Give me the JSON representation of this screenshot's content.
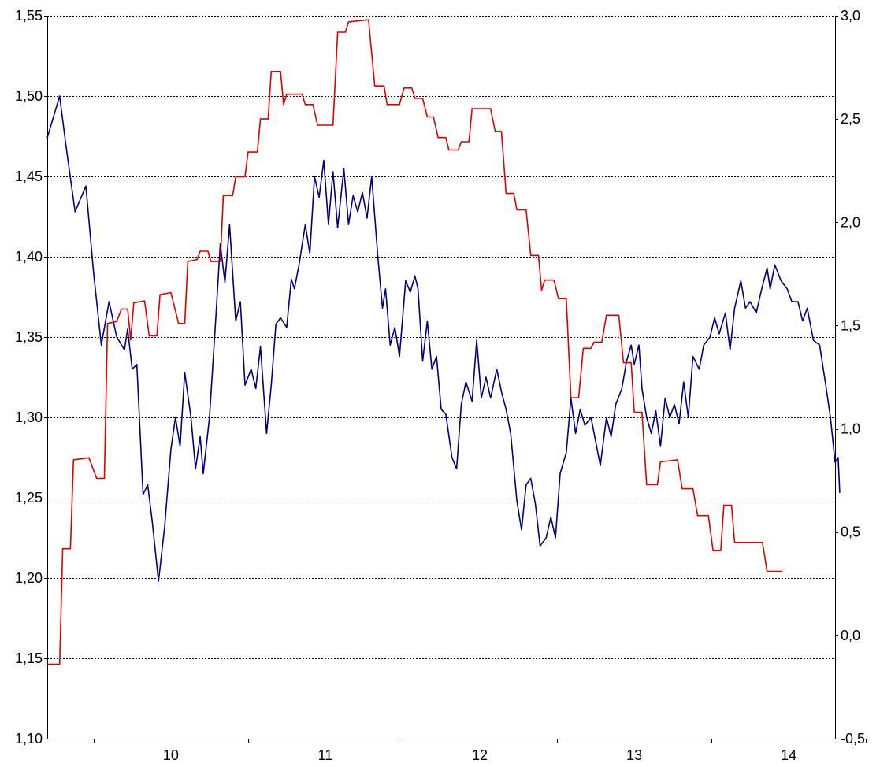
{
  "chart_data": {
    "type": "line",
    "title": "",
    "xlabel": "",
    "ylabel": "",
    "y2label": "",
    "grid": true,
    "legend": "none",
    "x_range": [
      9.2,
      14.3
    ],
    "x_ticks": [
      9.5,
      10.5,
      11.5,
      12.5,
      13.5,
      14.5
    ],
    "x_labels": [
      {
        "x": 10.0,
        "label": "10"
      },
      {
        "x": 11.0,
        "label": "11"
      },
      {
        "x": 12.0,
        "label": "12"
      },
      {
        "x": 13.0,
        "label": "13"
      },
      {
        "x": 14.0,
        "label": "14"
      }
    ],
    "y_left": {
      "range": [
        1.1,
        1.55
      ],
      "ticks": [
        1.1,
        1.15,
        1.2,
        1.25,
        1.3,
        1.35,
        1.4,
        1.45,
        1.5,
        1.55
      ],
      "tick_labels": [
        "1,10",
        "1,15",
        "1,20",
        "1,25",
        "1,30",
        "1,35",
        "1,40",
        "1,45",
        "1,50",
        "1,55"
      ]
    },
    "y_right": {
      "range": [
        -0.5,
        3.0
      ],
      "ticks": [
        -0.5,
        0.0,
        0.5,
        1.0,
        1.5,
        2.0,
        2.5,
        3.0
      ],
      "tick_labels": [
        "-0,5",
        "0,0",
        "0,5",
        "1,0",
        "1,5",
        "2,0",
        "2,5",
        "3,0"
      ]
    },
    "series": [
      {
        "axis": "left",
        "color": "#000080",
        "points": [
          [
            9.2,
            1.474
          ],
          [
            9.28,
            1.5
          ],
          [
            9.32,
            1.47
          ],
          [
            9.38,
            1.428
          ],
          [
            9.45,
            1.444
          ],
          [
            9.5,
            1.39
          ],
          [
            9.55,
            1.345
          ],
          [
            9.6,
            1.372
          ],
          [
            9.65,
            1.35
          ],
          [
            9.7,
            1.342
          ],
          [
            9.72,
            1.355
          ],
          [
            9.75,
            1.33
          ],
          [
            9.78,
            1.333
          ],
          [
            9.82,
            1.252
          ],
          [
            9.85,
            1.258
          ],
          [
            9.88,
            1.235
          ],
          [
            9.92,
            1.198
          ],
          [
            9.96,
            1.232
          ],
          [
            10.0,
            1.28
          ],
          [
            10.03,
            1.3
          ],
          [
            10.06,
            1.282
          ],
          [
            10.09,
            1.328
          ],
          [
            10.13,
            1.3
          ],
          [
            10.16,
            1.268
          ],
          [
            10.19,
            1.288
          ],
          [
            10.21,
            1.265
          ],
          [
            10.25,
            1.3
          ],
          [
            10.29,
            1.36
          ],
          [
            10.32,
            1.408
          ],
          [
            10.35,
            1.384
          ],
          [
            10.38,
            1.42
          ],
          [
            10.42,
            1.36
          ],
          [
            10.45,
            1.372
          ],
          [
            10.48,
            1.32
          ],
          [
            10.52,
            1.33
          ],
          [
            10.55,
            1.318
          ],
          [
            10.58,
            1.344
          ],
          [
            10.62,
            1.29
          ],
          [
            10.65,
            1.32
          ],
          [
            10.68,
            1.358
          ],
          [
            10.71,
            1.362
          ],
          [
            10.75,
            1.356
          ],
          [
            10.78,
            1.386
          ],
          [
            10.8,
            1.38
          ],
          [
            10.83,
            1.395
          ],
          [
            10.87,
            1.42
          ],
          [
            10.9,
            1.402
          ],
          [
            10.93,
            1.45
          ],
          [
            10.96,
            1.437
          ],
          [
            10.99,
            1.46
          ],
          [
            11.02,
            1.42
          ],
          [
            11.05,
            1.453
          ],
          [
            11.08,
            1.418
          ],
          [
            11.12,
            1.455
          ],
          [
            11.15,
            1.42
          ],
          [
            11.18,
            1.438
          ],
          [
            11.21,
            1.428
          ],
          [
            11.24,
            1.44
          ],
          [
            11.27,
            1.424
          ],
          [
            11.3,
            1.45
          ],
          [
            11.34,
            1.4
          ],
          [
            11.37,
            1.368
          ],
          [
            11.39,
            1.38
          ],
          [
            11.42,
            1.345
          ],
          [
            11.45,
            1.356
          ],
          [
            11.48,
            1.338
          ],
          [
            11.52,
            1.385
          ],
          [
            11.55,
            1.378
          ],
          [
            11.58,
            1.388
          ],
          [
            11.6,
            1.38
          ],
          [
            11.63,
            1.335
          ],
          [
            11.66,
            1.36
          ],
          [
            11.69,
            1.33
          ],
          [
            11.72,
            1.338
          ],
          [
            11.75,
            1.305
          ],
          [
            11.78,
            1.302
          ],
          [
            11.82,
            1.275
          ],
          [
            11.85,
            1.268
          ],
          [
            11.88,
            1.308
          ],
          [
            11.91,
            1.322
          ],
          [
            11.95,
            1.31
          ],
          [
            11.98,
            1.348
          ],
          [
            12.01,
            1.312
          ],
          [
            12.04,
            1.325
          ],
          [
            12.07,
            1.312
          ],
          [
            12.11,
            1.33
          ],
          [
            12.14,
            1.316
          ],
          [
            12.17,
            1.305
          ],
          [
            12.2,
            1.29
          ],
          [
            12.24,
            1.248
          ],
          [
            12.27,
            1.23
          ],
          [
            12.3,
            1.258
          ],
          [
            12.33,
            1.262
          ],
          [
            12.36,
            1.246
          ],
          [
            12.39,
            1.22
          ],
          [
            12.43,
            1.225
          ],
          [
            12.46,
            1.238
          ],
          [
            12.49,
            1.225
          ],
          [
            12.52,
            1.265
          ],
          [
            12.56,
            1.278
          ],
          [
            12.59,
            1.312
          ],
          [
            12.62,
            1.29
          ],
          [
            12.65,
            1.305
          ],
          [
            12.68,
            1.295
          ],
          [
            12.72,
            1.3
          ],
          [
            12.75,
            1.285
          ],
          [
            12.78,
            1.27
          ],
          [
            12.82,
            1.3
          ],
          [
            12.85,
            1.288
          ],
          [
            12.88,
            1.308
          ],
          [
            12.92,
            1.318
          ],
          [
            12.95,
            1.335
          ],
          [
            12.98,
            1.345
          ],
          [
            13.0,
            1.333
          ],
          [
            13.03,
            1.345
          ],
          [
            13.05,
            1.318
          ],
          [
            13.08,
            1.3
          ],
          [
            13.11,
            1.29
          ],
          [
            13.14,
            1.304
          ],
          [
            13.17,
            1.282
          ],
          [
            13.2,
            1.312
          ],
          [
            13.23,
            1.3
          ],
          [
            13.26,
            1.308
          ],
          [
            13.29,
            1.296
          ],
          [
            13.32,
            1.322
          ],
          [
            13.35,
            1.3
          ],
          [
            13.38,
            1.338
          ],
          [
            13.42,
            1.33
          ],
          [
            13.45,
            1.345
          ],
          [
            13.49,
            1.35
          ],
          [
            13.52,
            1.362
          ],
          [
            13.55,
            1.352
          ],
          [
            13.59,
            1.365
          ],
          [
            13.62,
            1.342
          ],
          [
            13.65,
            1.368
          ],
          [
            13.69,
            1.385
          ],
          [
            13.72,
            1.368
          ],
          [
            13.75,
            1.372
          ],
          [
            13.79,
            1.365
          ],
          [
            13.82,
            1.378
          ],
          [
            13.86,
            1.393
          ],
          [
            13.88,
            1.38
          ],
          [
            13.91,
            1.395
          ],
          [
            13.95,
            1.385
          ],
          [
            13.99,
            1.38
          ],
          [
            14.02,
            1.372
          ],
          [
            14.06,
            1.372
          ],
          [
            14.09,
            1.36
          ],
          [
            14.12,
            1.368
          ],
          [
            14.16,
            1.348
          ],
          [
            14.2,
            1.345
          ],
          [
            14.24,
            1.32
          ],
          [
            14.27,
            1.3
          ],
          [
            14.3,
            1.272
          ],
          [
            14.32,
            1.275
          ],
          [
            14.33,
            1.253
          ]
        ]
      },
      {
        "axis": "right",
        "color": "#e00000",
        "points": [
          [
            9.2,
            -0.14
          ],
          [
            9.28,
            -0.14
          ],
          [
            9.3,
            0.42
          ],
          [
            9.35,
            0.42
          ],
          [
            9.37,
            0.85
          ],
          [
            9.47,
            0.86
          ],
          [
            9.52,
            0.76
          ],
          [
            9.57,
            0.76
          ],
          [
            9.59,
            1.51
          ],
          [
            9.65,
            1.52
          ],
          [
            9.68,
            1.58
          ],
          [
            9.72,
            1.58
          ],
          [
            9.74,
            1.43
          ],
          [
            9.76,
            1.61
          ],
          [
            9.83,
            1.62
          ],
          [
            9.86,
            1.45
          ],
          [
            9.91,
            1.45
          ],
          [
            9.93,
            1.65
          ],
          [
            10.0,
            1.66
          ],
          [
            10.05,
            1.51
          ],
          [
            10.09,
            1.51
          ],
          [
            10.11,
            1.81
          ],
          [
            10.17,
            1.82
          ],
          [
            10.19,
            1.86
          ],
          [
            10.24,
            1.86
          ],
          [
            10.26,
            1.81
          ],
          [
            10.32,
            1.81
          ],
          [
            10.34,
            2.13
          ],
          [
            10.4,
            2.13
          ],
          [
            10.42,
            2.22
          ],
          [
            10.48,
            2.22
          ],
          [
            10.5,
            2.34
          ],
          [
            10.56,
            2.34
          ],
          [
            10.58,
            2.5
          ],
          [
            10.63,
            2.5
          ],
          [
            10.65,
            2.73
          ],
          [
            10.71,
            2.73
          ],
          [
            10.73,
            2.57
          ],
          [
            10.75,
            2.62
          ],
          [
            10.85,
            2.62
          ],
          [
            10.87,
            2.57
          ],
          [
            10.92,
            2.57
          ],
          [
            10.95,
            2.47
          ],
          [
            11.05,
            2.47
          ],
          [
            11.08,
            2.92
          ],
          [
            11.13,
            2.92
          ],
          [
            11.15,
            2.97
          ],
          [
            11.28,
            2.98
          ],
          [
            11.32,
            2.66
          ],
          [
            11.38,
            2.66
          ],
          [
            11.4,
            2.57
          ],
          [
            11.48,
            2.57
          ],
          [
            11.51,
            2.65
          ],
          [
            11.56,
            2.65
          ],
          [
            11.58,
            2.6
          ],
          [
            11.63,
            2.6
          ],
          [
            11.66,
            2.51
          ],
          [
            11.7,
            2.51
          ],
          [
            11.73,
            2.41
          ],
          [
            11.78,
            2.41
          ],
          [
            11.8,
            2.35
          ],
          [
            11.86,
            2.35
          ],
          [
            11.88,
            2.39
          ],
          [
            11.93,
            2.39
          ],
          [
            11.95,
            2.55
          ],
          [
            12.07,
            2.55
          ],
          [
            12.1,
            2.44
          ],
          [
            12.14,
            2.44
          ],
          [
            12.17,
            2.14
          ],
          [
            12.22,
            2.14
          ],
          [
            12.24,
            2.06
          ],
          [
            12.3,
            2.06
          ],
          [
            12.33,
            1.84
          ],
          [
            12.38,
            1.84
          ],
          [
            12.4,
            1.67
          ],
          [
            12.42,
            1.72
          ],
          [
            12.48,
            1.72
          ],
          [
            12.51,
            1.63
          ],
          [
            12.56,
            1.63
          ],
          [
            12.59,
            1.15
          ],
          [
            12.64,
            1.15
          ],
          [
            12.67,
            1.39
          ],
          [
            12.72,
            1.39
          ],
          [
            12.74,
            1.42
          ],
          [
            12.79,
            1.42
          ],
          [
            12.82,
            1.55
          ],
          [
            12.9,
            1.55
          ],
          [
            12.93,
            1.32
          ],
          [
            12.98,
            1.32
          ],
          [
            13.0,
            1.08
          ],
          [
            13.05,
            1.08
          ],
          [
            13.08,
            0.73
          ],
          [
            13.15,
            0.73
          ],
          [
            13.17,
            0.84
          ],
          [
            13.28,
            0.85
          ],
          [
            13.31,
            0.71
          ],
          [
            13.38,
            0.71
          ],
          [
            13.41,
            0.58
          ],
          [
            13.48,
            0.58
          ],
          [
            13.51,
            0.41
          ],
          [
            13.56,
            0.41
          ],
          [
            13.58,
            0.63
          ],
          [
            13.63,
            0.63
          ],
          [
            13.65,
            0.45
          ],
          [
            13.83,
            0.45
          ],
          [
            13.86,
            0.31
          ],
          [
            13.96,
            0.31
          ]
        ]
      }
    ]
  }
}
